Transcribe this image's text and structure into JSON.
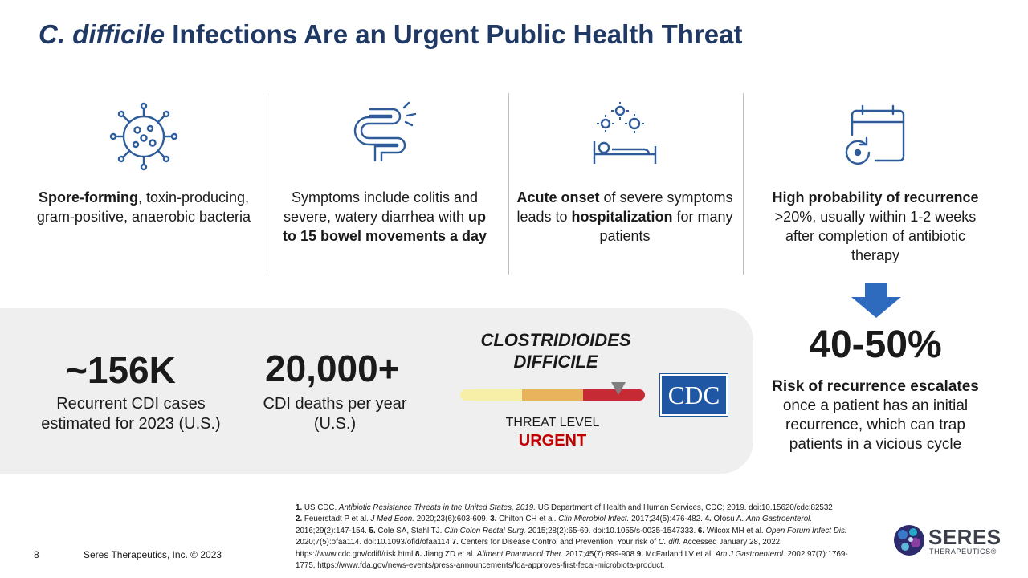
{
  "title": {
    "italic": "C. difficile",
    "rest": " Infections Are an Urgent Public Health Threat"
  },
  "columns": [
    {
      "icon": "bacteria-icon",
      "parts": [
        {
          "b": true,
          "t": "Spore-forming"
        },
        {
          "b": false,
          "t": ", toxin-producing, gram-positive, anaerobic bacteria"
        }
      ]
    },
    {
      "icon": "intestine-icon",
      "parts": [
        {
          "b": false,
          "t": "Symptoms include colitis and severe, watery diarrhea with "
        },
        {
          "b": true,
          "t": "up to 15 bowel movements a day"
        }
      ]
    },
    {
      "icon": "hospital-bed-icon",
      "parts": [
        {
          "b": true,
          "t": "Acute onset"
        },
        {
          "b": false,
          "t": " of severe symptoms leads to "
        },
        {
          "b": true,
          "t": "hospitalization"
        },
        {
          "b": false,
          "t": " for many patients"
        }
      ]
    },
    {
      "icon": "calendar-recurrence-icon",
      "parts": [
        {
          "b": true,
          "t": "High probability of recurrence"
        },
        {
          "b": false,
          "t": " >20%, usually within 1-2 weeks after completion of antibiotic therapy"
        }
      ]
    }
  ],
  "stats": {
    "recurrent": {
      "value": "~156K",
      "desc": "Recurrent CDI cases estimated for 2023 (U.S.)"
    },
    "deaths": {
      "value": "20,000+",
      "desc": "CDI deaths per year (U.S.)"
    }
  },
  "threat": {
    "name_line1": "CLOSTRIDIOIDES",
    "name_line2": "DIFFICILE",
    "label": "THREAT LEVEL",
    "level": "URGENT",
    "level_color": "#c00000"
  },
  "cdc_logo": {
    "text": "CDC"
  },
  "recurrence": {
    "value": "40-50%",
    "bold": "Risk of recurrence escalates",
    "rest": " once a patient has an initial recurrence, which can trap patients in a vicious cycle"
  },
  "references": [
    {
      "n": "1. ",
      "t": "US CDC. "
    },
    {
      "i": "Antibiotic Resistance Threats in the United States, 2019."
    },
    {
      "t": " US Department of Health and Human Services, CDC; 2019. doi:10.15620/cdc:82532"
    },
    {
      "br": true
    },
    {
      "n": "2. ",
      "t": "Feuerstadt P et al. "
    },
    {
      "i": "J Med Econ."
    },
    {
      "t": " 2020;23(6):603-609. "
    },
    {
      "n": "3. ",
      "t": "Chilton CH et al. "
    },
    {
      "i": "Clin Microbiol Infect."
    },
    {
      "t": " 2017;24(5):476-482. "
    },
    {
      "n": "4. ",
      "t": "Ofosu A. "
    },
    {
      "i": "Ann Gastroenterol."
    },
    {
      "t": " 2016;29(2):147-154. "
    },
    {
      "n": "5. ",
      "t": "Cole SA, Stahl TJ. "
    },
    {
      "i": "Clin Colon Rectal Surg."
    },
    {
      "t": " 2015;28(2):65-69. doi:10.1055/s-0035-1547333. "
    },
    {
      "n": "6. ",
      "t": "Wilcox MH et al. "
    },
    {
      "i": "Open Forum Infect Dis."
    },
    {
      "t": " 2020;7(5):ofaa114. doi:10.1093/ofid/ofaa114 "
    },
    {
      "n": "7. ",
      "t": "Centers for Disease Control and Prevention. Your risk of "
    },
    {
      "i": "C. diff."
    },
    {
      "t": " Accessed January 28, 2022. https://www.cdc.gov/cdiff/risk.html "
    },
    {
      "n": "8. ",
      "t": "Jiang ZD et al. "
    },
    {
      "i": "Aliment Pharmacol Ther."
    },
    {
      "t": " 2017;45(7):899-908."
    },
    {
      "n": "9. ",
      "t": " McFarland LV et al. "
    },
    {
      "i": "Am J Gastroenterol."
    },
    {
      "t": " 2002;97(7):1769-1775, https://www.fda.gov/news-events/press-announcements/fda-approves-first-fecal-microbiota-product."
    }
  ],
  "footer": {
    "page_number": "8",
    "company": "Seres Therapeutics, Inc. © 2023"
  },
  "logo": {
    "word": "SERES",
    "sub": "THERAPEUTICS",
    "mark": "®"
  },
  "colors": {
    "title": "#1f3864",
    "icon": "#2e5c9a",
    "arrow": "#2e6bbf",
    "panel": "#efefef"
  }
}
